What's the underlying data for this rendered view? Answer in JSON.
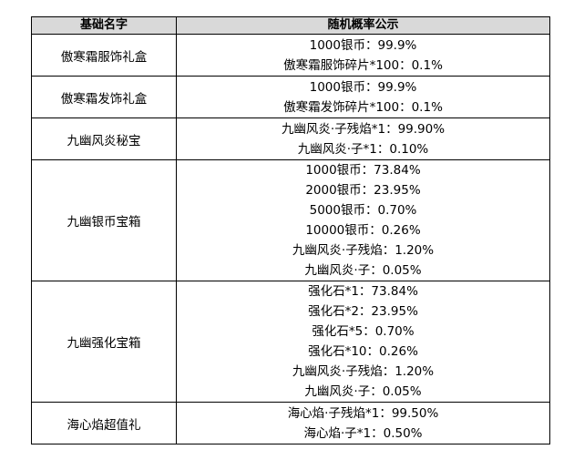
{
  "header": {
    "col_name": "基础名字",
    "col_prob": "随机概率公示"
  },
  "rows": [
    {
      "name": "傲寒霜服饰礼盒",
      "lines": [
        "1000银币：99.9%",
        "傲寒霜服饰碎片*100：0.1%"
      ]
    },
    {
      "name": "傲寒霜发饰礼盒",
      "lines": [
        "1000银币：99.9%",
        "傲寒霜发饰碎片*100：0.1%"
      ]
    },
    {
      "name": "九幽风炎秘宝",
      "lines": [
        "九幽风炎·子残焰*1：99.90%",
        "九幽风炎·子*1：0.10%"
      ]
    },
    {
      "name": "九幽银币宝箱",
      "lines": [
        "1000银币：73.84%",
        "2000银币：23.95%",
        "5000银币：0.70%",
        "10000银币：0.26%",
        "九幽风炎·子残焰：1.20%",
        "九幽风炎·子：0.05%"
      ]
    },
    {
      "name": "九幽强化宝箱",
      "lines": [
        "强化石*1：73.84%",
        "强化石*2：23.95%",
        "强化石*5：0.70%",
        "强化石*10：0.26%",
        "九幽风炎·子残焰：1.20%",
        "九幽风炎·子：0.05%"
      ]
    },
    {
      "name": "海心焰超值礼",
      "lines": [
        "海心焰·子残焰*1：99.50%",
        "海心焰·子*1：0.50%"
      ]
    }
  ]
}
